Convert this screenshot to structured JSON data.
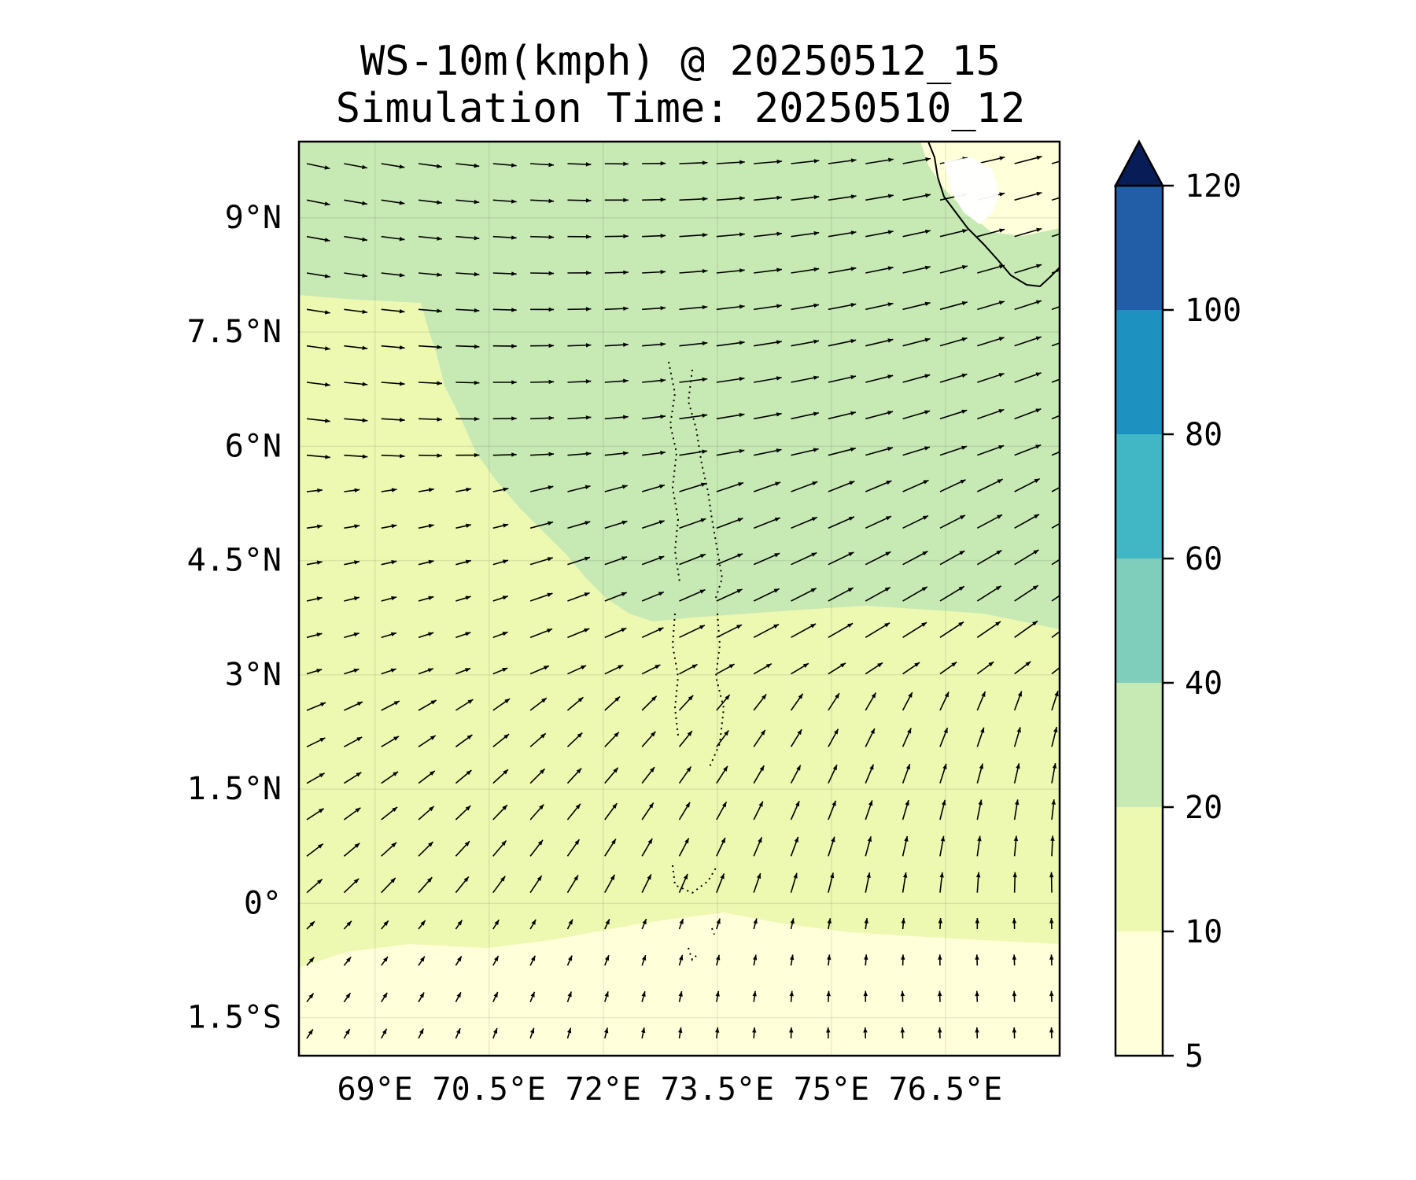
{
  "title": {
    "line1": "WS-10m(kmph) @ 20250512_15",
    "line2": "Simulation Time: 20250510_12"
  },
  "map": {
    "lat_labels": [
      "9°N",
      "7.5°N",
      "6°N",
      "4.5°N",
      "3°N",
      "1.5°N",
      "0°",
      "1.5°S"
    ],
    "lon_labels": [
      "69°E",
      "70.5°E",
      "72°E",
      "73.5°E",
      "75°E",
      "76.5°E"
    ],
    "lat_values": [
      9,
      7.5,
      6,
      4.5,
      3,
      1.5,
      0,
      -1.5
    ],
    "lon_values": [
      69,
      70.5,
      72,
      73.5,
      75,
      76.5
    ],
    "lat_range": [
      -2,
      10
    ],
    "lon_range": [
      68,
      78
    ],
    "zones": [
      {
        "name": "band-10-20",
        "color": "#edf8b1"
      },
      {
        "name": "band-20-40",
        "color": "#c7e9b4"
      },
      {
        "name": "band-5-10",
        "color": "#ffffd9"
      }
    ]
  },
  "colorbar": {
    "labels": [
      "5",
      "10",
      "20",
      "40",
      "60",
      "80",
      "100",
      "120"
    ],
    "colors": [
      "#ffffd9",
      "#edf8b1",
      "#c7e9b4",
      "#7fcdbb",
      "#41b6c4",
      "#1d91c0",
      "#225ea8",
      "#0c2c84"
    ],
    "extend_color": "#081d58"
  }
}
